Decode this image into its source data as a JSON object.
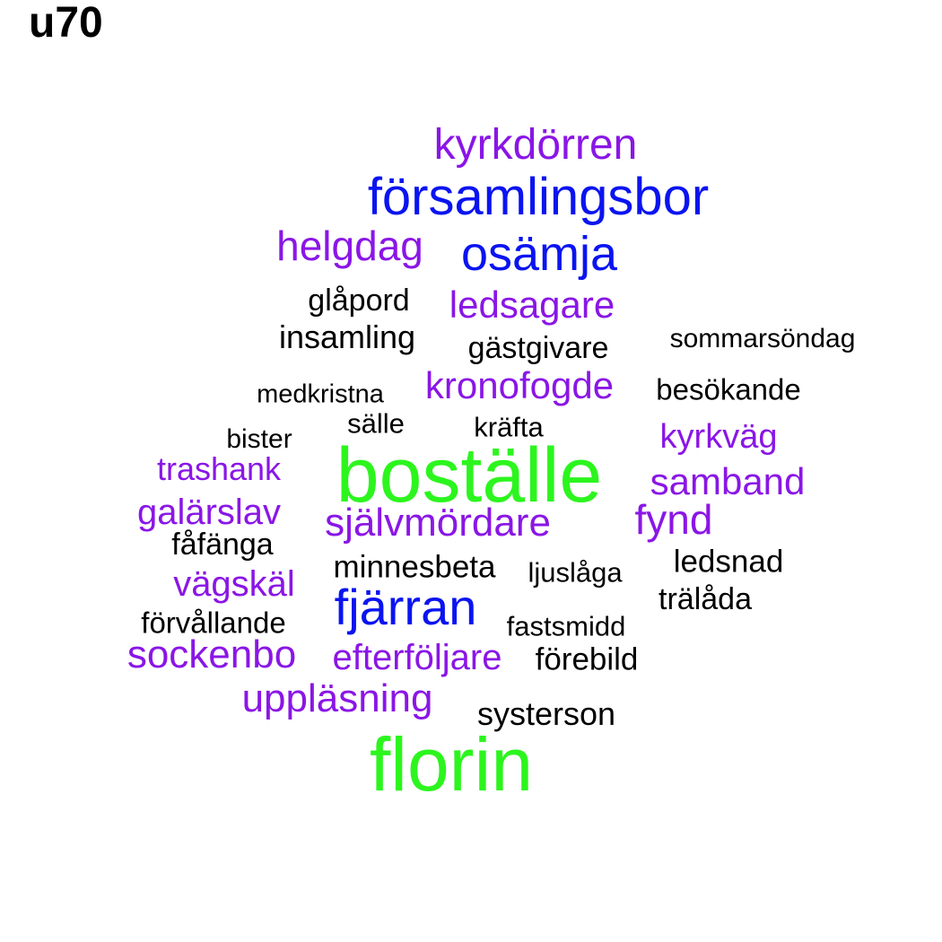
{
  "title": "u70",
  "colors": {
    "black": "#000000",
    "purple": "#8a16e6",
    "blue": "#0a14f0",
    "green": "#2cf51e"
  },
  "words": [
    {
      "text": "kyrkdörren",
      "color": "purple"
    },
    {
      "text": "församlingsbor",
      "color": "blue"
    },
    {
      "text": "helgdag",
      "color": "purple"
    },
    {
      "text": "osämja",
      "color": "blue"
    },
    {
      "text": "glåpord",
      "color": "black"
    },
    {
      "text": "ledsagare",
      "color": "purple"
    },
    {
      "text": "insamling",
      "color": "black"
    },
    {
      "text": "gästgivare",
      "color": "black"
    },
    {
      "text": "sommarsöndag",
      "color": "black"
    },
    {
      "text": "medkristna",
      "color": "black"
    },
    {
      "text": "kronofogde",
      "color": "purple"
    },
    {
      "text": "besökande",
      "color": "black"
    },
    {
      "text": "sälle",
      "color": "black"
    },
    {
      "text": "kräfta",
      "color": "black"
    },
    {
      "text": "bister",
      "color": "black"
    },
    {
      "text": "kyrkväg",
      "color": "purple"
    },
    {
      "text": "trashank",
      "color": "purple"
    },
    {
      "text": "boställe",
      "color": "green"
    },
    {
      "text": "samband",
      "color": "purple"
    },
    {
      "text": "galärslav",
      "color": "purple"
    },
    {
      "text": "självmördare",
      "color": "purple"
    },
    {
      "text": "fynd",
      "color": "purple"
    },
    {
      "text": "fåfänga",
      "color": "black"
    },
    {
      "text": "minnesbeta",
      "color": "black"
    },
    {
      "text": "ljuslåga",
      "color": "black"
    },
    {
      "text": "ledsnad",
      "color": "black"
    },
    {
      "text": "vägskäl",
      "color": "purple"
    },
    {
      "text": "fjärran",
      "color": "blue"
    },
    {
      "text": "trälåda",
      "color": "black"
    },
    {
      "text": "förvållande",
      "color": "black"
    },
    {
      "text": "fastsmidd",
      "color": "black"
    },
    {
      "text": "sockenbo",
      "color": "purple"
    },
    {
      "text": "efterföljare",
      "color": "purple"
    },
    {
      "text": "förebild",
      "color": "black"
    },
    {
      "text": "uppläsning",
      "color": "purple"
    },
    {
      "text": "systerson",
      "color": "black"
    },
    {
      "text": "florin",
      "color": "green"
    }
  ]
}
